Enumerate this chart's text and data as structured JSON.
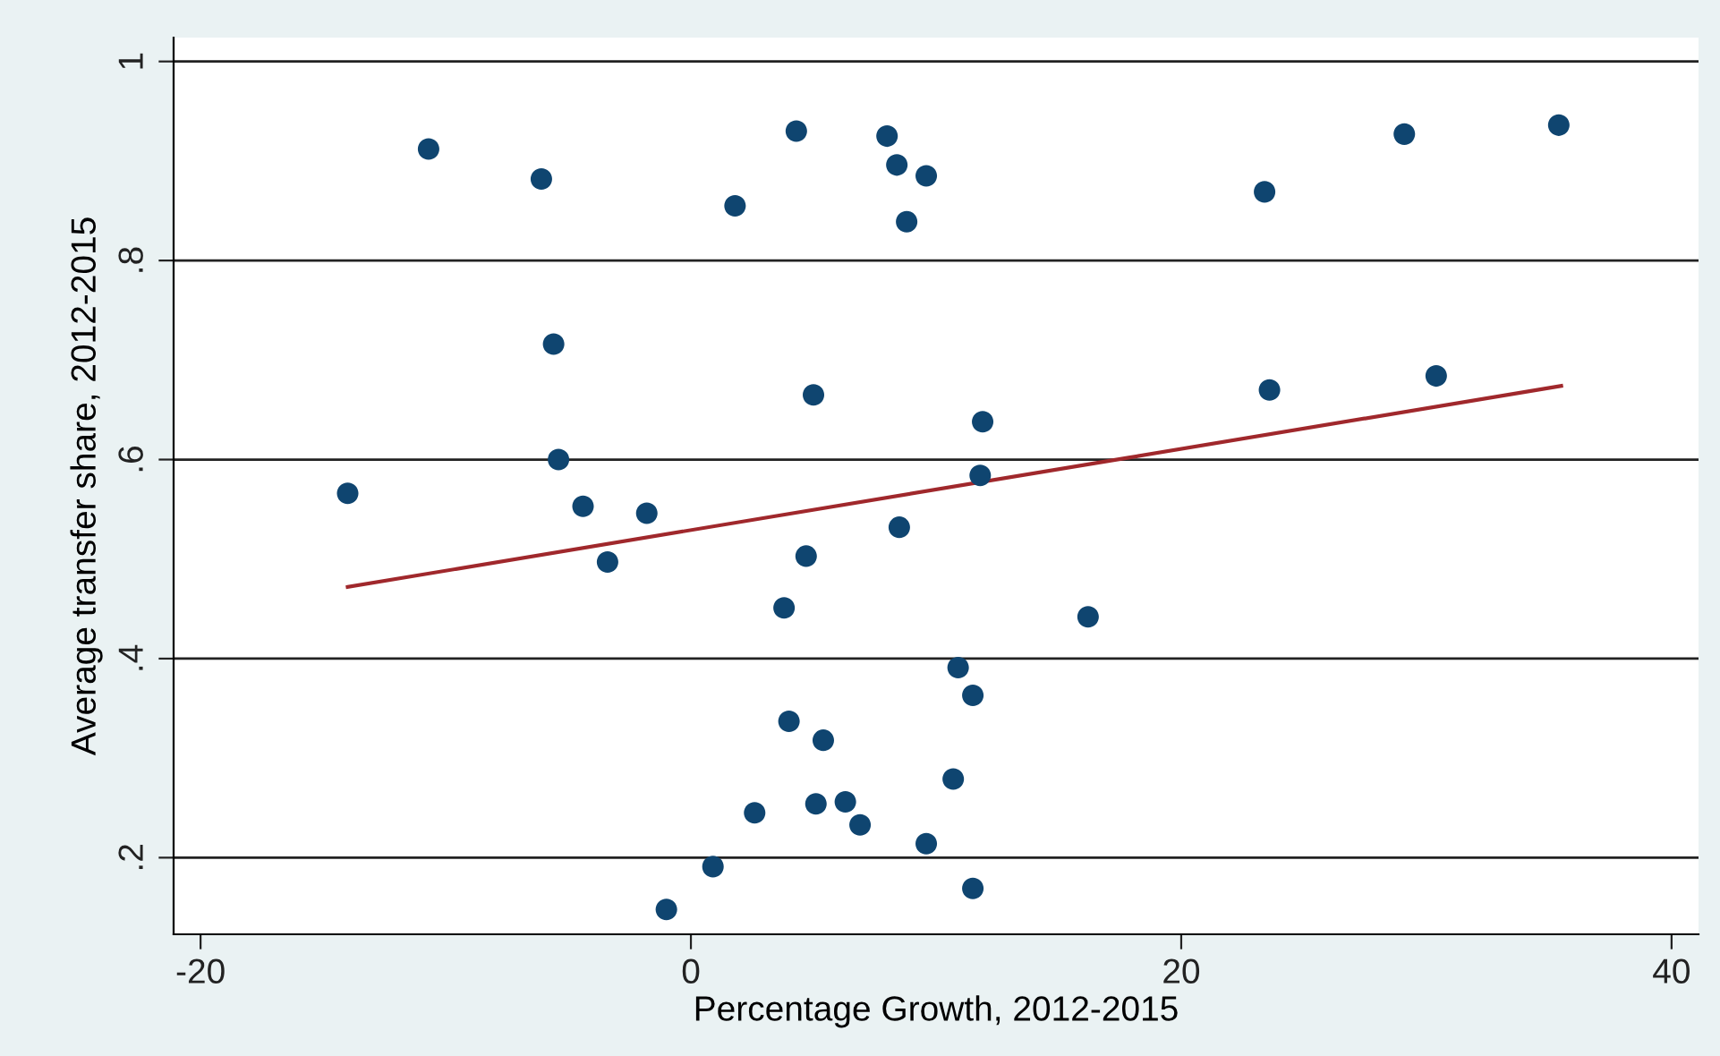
{
  "chart_data": {
    "type": "scatter",
    "xlabel": "Percentage Growth, 2012-2015",
    "ylabel": "Average transfer share, 2012-2015",
    "xlim": [
      -21.1,
      41.1
    ],
    "xticks": [
      -20,
      0,
      20,
      40
    ],
    "ylim": [
      0.123,
      1.024
    ],
    "yticks": [
      {
        "value": 0.2,
        "label": ".2"
      },
      {
        "value": 0.4,
        "label": ".4"
      },
      {
        "value": 0.6,
        "label": ".6"
      },
      {
        "value": 0.8,
        "label": ".8"
      },
      {
        "value": 1,
        "label": "1"
      }
    ],
    "grid": "y",
    "marker": "circle",
    "series": [
      {
        "color": "#0f4570",
        "x": [
          -10.7,
          -6.1,
          1.8,
          4.3,
          8.0,
          8.4,
          9.6,
          8.8,
          23.4,
          29.1,
          35.4,
          -5.6,
          5.0,
          11.9,
          23.6,
          30.4,
          -14.0,
          -5.4,
          -4.4,
          -1.8,
          -3.4,
          11.8,
          4.7,
          8.5,
          3.8,
          16.2,
          10.9,
          11.5,
          4.0,
          5.4,
          10.7,
          2.6,
          5.1,
          6.3,
          6.9,
          9.6,
          0.9,
          -1.0,
          11.5
        ],
        "values": [
          0.912,
          0.882,
          0.855,
          0.93,
          0.925,
          0.896,
          0.885,
          0.839,
          0.869,
          0.927,
          0.936,
          0.716,
          0.665,
          0.638,
          0.67,
          0.684,
          0.566,
          0.6,
          0.553,
          0.546,
          0.497,
          0.584,
          0.503,
          0.532,
          0.451,
          0.442,
          0.391,
          0.363,
          0.337,
          0.318,
          0.279,
          0.245,
          0.254,
          0.256,
          0.233,
          0.214,
          0.191,
          0.148,
          0.169
        ]
      },
      {
        "type": "line",
        "color": "#a0282c",
        "marker": "none",
        "x": [
          -14.0,
          35.5
        ],
        "values": [
          0.472,
          0.674
        ]
      }
    ]
  }
}
